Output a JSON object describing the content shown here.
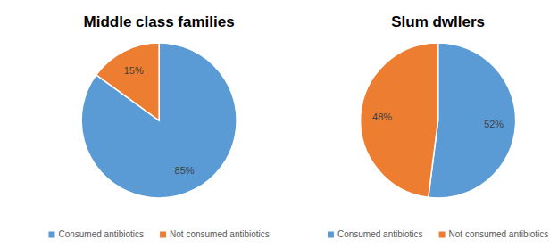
{
  "chart_data": [
    {
      "type": "pie",
      "title": "Middle class families",
      "categories": [
        "Consumed antibiotics",
        "Not consumed antibiotics"
      ],
      "values": [
        85,
        15
      ],
      "value_labels": [
        "85%",
        "15%"
      ],
      "colors": [
        "#5b9bd5",
        "#ed7d31"
      ],
      "data_labels": true,
      "legend": "bottom"
    },
    {
      "type": "pie",
      "title": "Slum dwllers",
      "categories": [
        "Consumed antibiotics",
        "Not consumed antibiotics"
      ],
      "values": [
        52,
        48
      ],
      "value_labels": [
        "52%",
        "48%"
      ],
      "colors": [
        "#5b9bd5",
        "#ed7d31"
      ],
      "data_labels": true,
      "legend": "bottom"
    }
  ]
}
